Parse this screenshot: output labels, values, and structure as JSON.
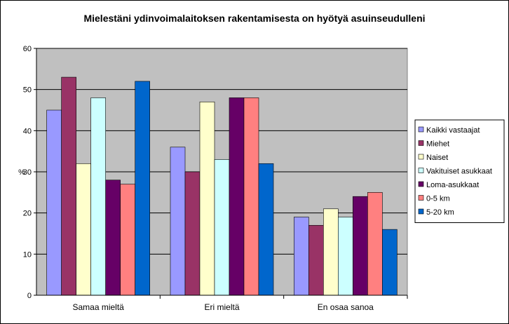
{
  "chart_data": {
    "type": "bar",
    "title": "Mielestäni ydinvoimalaitoksen rakentamisesta on hyötyä asuinseudulleni",
    "xlabel": "",
    "ylabel": "%",
    "ylim": [
      0,
      60
    ],
    "yticks": [
      0,
      10,
      20,
      30,
      40,
      50,
      60
    ],
    "grid": true,
    "legend_position": "right",
    "plot_background": "#c0c0c0",
    "categories": [
      "Samaa mieltä",
      "Eri mieltä",
      "En osaa sanoa"
    ],
    "series": [
      {
        "name": "Kaikki vastaajat",
        "color": "#9999ff",
        "values": [
          45,
          36,
          19
        ]
      },
      {
        "name": "Miehet",
        "color": "#993366",
        "values": [
          53,
          30,
          17
        ]
      },
      {
        "name": "Naiset",
        "color": "#ffffcc",
        "values": [
          32,
          47,
          21
        ]
      },
      {
        "name": "Vakituiset asukkaat",
        "color": "#ccffff",
        "values": [
          48,
          33,
          19
        ]
      },
      {
        "name": "Loma-asukkaat",
        "color": "#660066",
        "values": [
          28,
          48,
          24
        ]
      },
      {
        "name": "0-5 km",
        "color": "#ff8080",
        "values": [
          27,
          48,
          25
        ]
      },
      {
        "name": "5-20 km",
        "color": "#0066cc",
        "values": [
          52,
          32,
          16
        ]
      }
    ]
  }
}
